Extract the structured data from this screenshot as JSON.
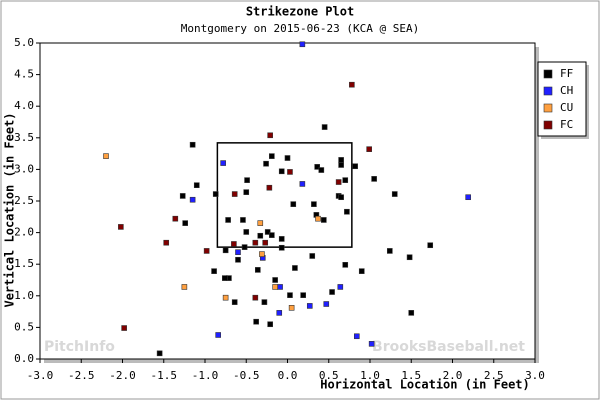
{
  "chart_data": {
    "type": "scatter",
    "title": "Strikezone Plot",
    "subtitle": "Montgomery on 2015-06-23 (KCA @ SEA)",
    "xlabel": "Horizontal Location (in Feet)",
    "ylabel": "Vertical Location (in Feet)",
    "watermarks": [
      "PitchInfo",
      "BrooksBaseball.net"
    ],
    "legend": "right",
    "xlim": [
      -3.0,
      3.0
    ],
    "ylim": [
      0.0,
      5.0
    ],
    "xticks": [
      {
        "value": -3,
        "label": "-3.0"
      },
      {
        "value": -2.5,
        "label": "-2.5"
      },
      {
        "value": -2,
        "label": "-2.0"
      },
      {
        "value": -1.5,
        "label": "-1.5"
      },
      {
        "value": -1,
        "label": "-1.0"
      },
      {
        "value": -0.5,
        "label": "-0.5"
      },
      {
        "value": 0,
        "label": "0.0"
      },
      {
        "value": 0.5,
        "label": "0.5"
      },
      {
        "value": 1,
        "label": "1.0"
      },
      {
        "value": 1.5,
        "label": "1.5"
      },
      {
        "value": 2,
        "label": "2.0"
      },
      {
        "value": 2.5,
        "label": "2.5"
      },
      {
        "value": 3,
        "label": "3.0"
      }
    ],
    "yticks": [
      {
        "value": 0,
        "label": "0.0"
      },
      {
        "value": 0.5,
        "label": "0.5"
      },
      {
        "value": 1,
        "label": "1.0"
      },
      {
        "value": 1.5,
        "label": "1.5"
      },
      {
        "value": 2,
        "label": "2.0"
      },
      {
        "value": 2.5,
        "label": "2.5"
      },
      {
        "value": 3,
        "label": "3.0"
      },
      {
        "value": 3.5,
        "label": "3.5"
      },
      {
        "value": 4,
        "label": "4.0"
      },
      {
        "value": 4.5,
        "label": "4.5"
      },
      {
        "value": 5,
        "label": "5.0"
      }
    ],
    "strike_zone": {
      "x": [
        -0.85,
        0.78
      ],
      "y": [
        1.77,
        3.42
      ]
    },
    "series": [
      {
        "name": "FF",
        "color": "#000000",
        "x": [
          0.45,
          -1.15,
          -0.19,
          0,
          -0.26,
          0.65,
          0.36,
          0.41,
          0.65,
          0.82,
          -0.07,
          -1.1,
          -0.49,
          1.05,
          0.7,
          -1.27,
          -0.87,
          -0.5,
          1.3,
          0.62,
          0.65,
          0.32,
          0.07,
          0.72,
          0.35,
          -0.72,
          -0.54,
          0.44,
          -1.24,
          -0.5,
          -0.24,
          -0.33,
          -0.19,
          -0.07,
          -0.52,
          -0.07,
          -0.75,
          0.3,
          1.24,
          1.48,
          1.73,
          -0.6,
          0.09,
          0.7,
          0.9,
          -0.89,
          -0.36,
          -0.71,
          -0.76,
          -0.15,
          0.03,
          0.19,
          -0.28,
          -0.64,
          0.54,
          1.5,
          -0.38,
          -0.21,
          -1.55
        ],
        "y": [
          3.67,
          3.39,
          3.21,
          3.18,
          3.09,
          3.15,
          3.04,
          2.99,
          3.07,
          3.05,
          2.97,
          2.75,
          2.83,
          2.85,
          2.83,
          2.58,
          2.61,
          2.64,
          2.61,
          2.58,
          2.56,
          2.45,
          2.45,
          2.33,
          2.28,
          2.2,
          2.2,
          2.2,
          2.15,
          2.01,
          2.01,
          1.95,
          1.96,
          1.9,
          1.77,
          1.76,
          1.72,
          1.63,
          1.71,
          1.61,
          1.8,
          1.57,
          1.44,
          1.49,
          1.39,
          1.39,
          1.41,
          1.28,
          1.28,
          1.25,
          1.01,
          1.01,
          0.9,
          0.9,
          1.06,
          0.73,
          0.59,
          0.55,
          0.09
        ]
      },
      {
        "name": "CH",
        "color": "#2020ff",
        "x": [
          0.18,
          -0.78,
          -1.15,
          0.18,
          2.19,
          -0.6,
          -0.3,
          -0.09,
          0.64,
          0.27,
          0.47,
          -0.84,
          0.84,
          1.02,
          -0.1
        ],
        "y": [
          4.98,
          3.1,
          2.52,
          2.77,
          2.56,
          1.69,
          1.6,
          1.14,
          1.14,
          0.84,
          0.87,
          0.38,
          0.36,
          0.24,
          0.73
        ]
      },
      {
        "name": "CU",
        "color": "#ffa040",
        "x": [
          -2.2,
          -1.25,
          -0.75,
          -0.33,
          0.37,
          -0.15,
          0.05,
          -0.31
        ],
        "y": [
          3.21,
          1.14,
          0.97,
          2.15,
          2.22,
          1.14,
          0.81,
          1.66
        ]
      },
      {
        "name": "FC",
        "color": "#800000",
        "x": [
          0.78,
          -0.21,
          0.99,
          -0.22,
          -0.64,
          -1.36,
          -2.02,
          -1.47,
          -0.98,
          -0.65,
          -0.39,
          -0.27,
          0.62,
          0.03,
          -0.39,
          -1.98
        ],
        "y": [
          4.34,
          3.54,
          3.32,
          2.71,
          2.61,
          2.22,
          2.09,
          1.84,
          1.71,
          1.82,
          1.84,
          1.84,
          2.8,
          2.96,
          0.97,
          0.49
        ]
      }
    ]
  }
}
